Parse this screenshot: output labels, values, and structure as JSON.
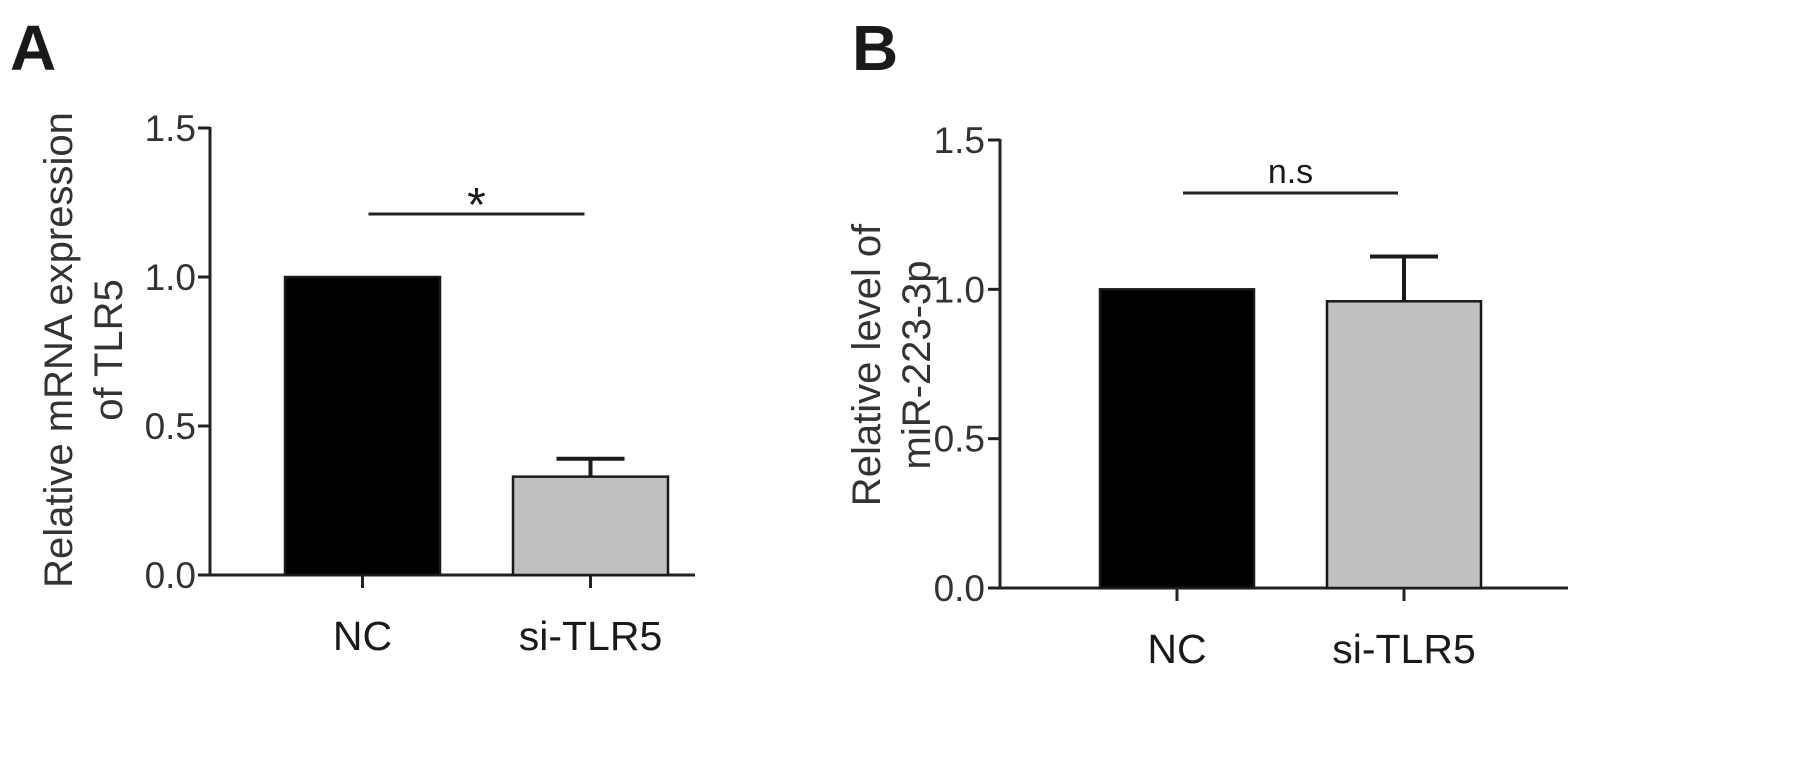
{
  "chart_data": [
    {
      "type": "bar",
      "panel_label": "A",
      "ylabel_lines": [
        "Relative mRNA expression",
        "of TLR5"
      ],
      "ylim": [
        0,
        1.5
      ],
      "yticks": [
        "0.0",
        "0.5",
        "1.0",
        "1.5"
      ],
      "categories": [
        "NC",
        "si-TLR5"
      ],
      "values": [
        1.0,
        0.33
      ],
      "errors": [
        0,
        0.06
      ],
      "colors": [
        "#000000",
        "#c0c0c0"
      ],
      "significance": {
        "label": "*",
        "between": [
          "NC",
          "si-TLR5"
        ]
      }
    },
    {
      "type": "bar",
      "panel_label": "B",
      "ylabel_lines": [
        "Relative level of",
        "miR-223-3p"
      ],
      "ylim": [
        0,
        1.5
      ],
      "yticks": [
        "0.0",
        "0.5",
        "1.0",
        "1.5"
      ],
      "categories": [
        "NC",
        "si-TLR5"
      ],
      "values": [
        1.0,
        0.96
      ],
      "errors": [
        0,
        0.15
      ],
      "colors": [
        "#000000",
        "#c0c0c0"
      ],
      "significance": {
        "label": "n.s",
        "between": [
          "NC",
          "si-TLR5"
        ]
      }
    }
  ]
}
